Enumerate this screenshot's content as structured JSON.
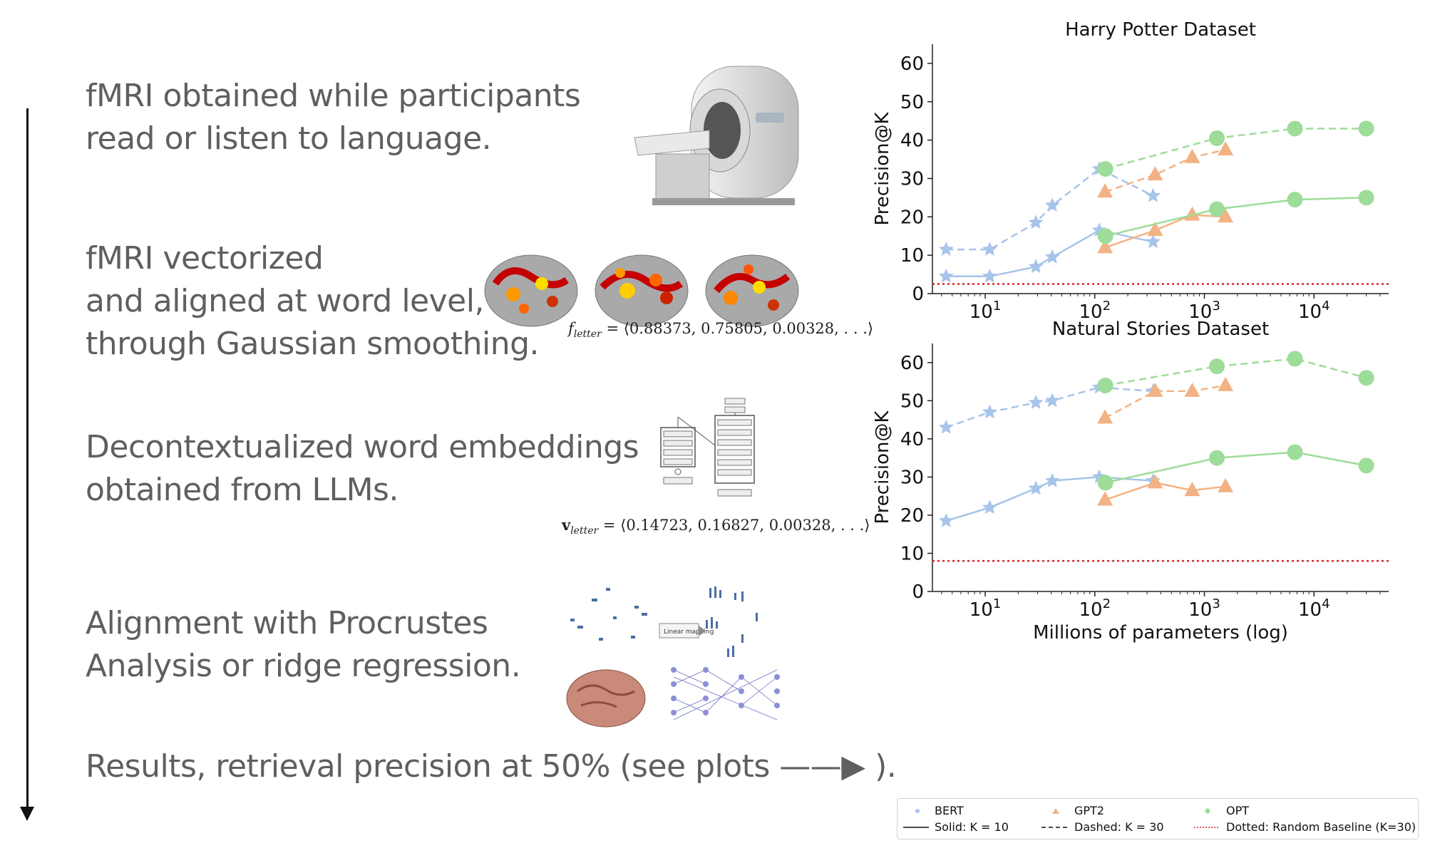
{
  "steps": [
    {
      "lines": [
        "fMRI obtained while participants",
        "read or listen to language."
      ]
    },
    {
      "lines": [
        "fMRI vectorized",
        "and aligned at word level,",
        "through Gaussian smoothing."
      ]
    },
    {
      "lines": [
        "Decontextualized word embeddings",
        "obtained from LLMs."
      ]
    },
    {
      "lines": [
        "Alignment with Procrustes",
        "Analysis or ridge regression."
      ]
    },
    {
      "lines": [
        "Results, retrieval precision at 50% (see plots ——▶ )."
      ]
    }
  ],
  "formulas": {
    "f_symbol": "f",
    "f_sub": "letter",
    "f_values": "= ⟨0.88373, 0.75805, 0.00328, . . .⟩",
    "v_symbol": "v",
    "v_sub": "letter",
    "v_values": "= ⟨0.14723, 0.16827, 0.00328, . . .⟩"
  },
  "illustrations": {
    "mapping_label": "Linear mapping"
  },
  "chart_data": [
    {
      "type": "line",
      "title": "Harry Potter Dataset",
      "ylabel": "Precision@K",
      "xlabel": "",
      "xscale": "log",
      "xlim": [
        3.3,
        48000
      ],
      "ylim": [
        0,
        65
      ],
      "yticks": [
        0,
        10,
        20,
        30,
        40,
        50,
        60
      ],
      "xticks": [
        "10^1",
        "10^2",
        "10^3",
        "10^4"
      ],
      "baseline": 2.5,
      "series": [
        {
          "name": "BERT",
          "k": 10,
          "color": "#a7c4ea",
          "marker": "star",
          "x": [
            4.4,
            11,
            29,
            41,
            110,
            340
          ],
          "y": [
            4.5,
            4.5,
            7,
            9.5,
            16.5,
            13.5
          ]
        },
        {
          "name": "BERT",
          "k": 30,
          "color": "#a7c4ea",
          "marker": "star",
          "x": [
            4.4,
            11,
            29,
            41,
            110,
            340
          ],
          "y": [
            11.5,
            11.5,
            18.5,
            23,
            32.5,
            25.5
          ]
        },
        {
          "name": "GPT2",
          "k": 10,
          "color": "#f2b283",
          "marker": "triangle",
          "x": [
            124,
            355,
            774,
            1558
          ],
          "y": [
            12,
            16.5,
            20.5,
            20
          ]
        },
        {
          "name": "GPT2",
          "k": 30,
          "color": "#f2b283",
          "marker": "triangle",
          "x": [
            124,
            355,
            774,
            1558
          ],
          "y": [
            26.5,
            31,
            35.5,
            37.5
          ]
        },
        {
          "name": "OPT",
          "k": 10,
          "color": "#9edc99",
          "marker": "circle",
          "x": [
            125,
            1300,
            6700,
            30000
          ],
          "y": [
            15,
            22,
            24.5,
            25
          ]
        },
        {
          "name": "OPT",
          "k": 30,
          "color": "#9edc99",
          "marker": "circle",
          "x": [
            125,
            1300,
            6700,
            30000
          ],
          "y": [
            32.5,
            40.5,
            43,
            43
          ]
        }
      ]
    },
    {
      "type": "line",
      "title": "Natural Stories Dataset",
      "ylabel": "Precision@K",
      "xlabel": "Millions of parameters (log)",
      "xscale": "log",
      "xlim": [
        3.3,
        48000
      ],
      "ylim": [
        0,
        65
      ],
      "yticks": [
        0,
        10,
        20,
        30,
        40,
        50,
        60
      ],
      "xticks": [
        "10^1",
        "10^2",
        "10^3",
        "10^4"
      ],
      "baseline": 8,
      "series": [
        {
          "name": "BERT",
          "k": 10,
          "color": "#a7c4ea",
          "marker": "star",
          "x": [
            4.4,
            11,
            29,
            41,
            110,
            340
          ],
          "y": [
            18.5,
            22,
            27,
            29,
            30,
            29
          ]
        },
        {
          "name": "BERT",
          "k": 30,
          "color": "#a7c4ea",
          "marker": "star",
          "x": [
            4.4,
            11,
            29,
            41,
            110,
            340
          ],
          "y": [
            43,
            47,
            49.5,
            50,
            53.5,
            52.5
          ]
        },
        {
          "name": "GPT2",
          "k": 10,
          "color": "#f2b283",
          "marker": "triangle",
          "x": [
            124,
            355,
            774,
            1558
          ],
          "y": [
            24,
            28.5,
            26.5,
            27.5
          ]
        },
        {
          "name": "GPT2",
          "k": 30,
          "color": "#f2b283",
          "marker": "triangle",
          "x": [
            124,
            355,
            774,
            1558
          ],
          "y": [
            45.5,
            52.5,
            52.5,
            54
          ]
        },
        {
          "name": "OPT",
          "k": 10,
          "color": "#9edc99",
          "marker": "circle",
          "x": [
            125,
            1300,
            6700,
            30000
          ],
          "y": [
            28.5,
            35,
            36.5,
            33
          ]
        },
        {
          "name": "OPT",
          "k": 30,
          "color": "#9edc99",
          "marker": "circle",
          "x": [
            125,
            1300,
            6700,
            30000
          ],
          "y": [
            54,
            59,
            61,
            56
          ]
        }
      ]
    }
  ],
  "legend": {
    "bert": "BERT",
    "gpt2": "GPT2",
    "opt": "OPT",
    "solid": "Solid: K = 10",
    "dashed": "Dashed: K = 30",
    "dotted": "Dotted: Random Baseline (K=30)",
    "colors": {
      "bert": "#a7c4ea",
      "gpt2": "#f2b283",
      "opt": "#9edc99",
      "baseline": "#d62728"
    }
  }
}
